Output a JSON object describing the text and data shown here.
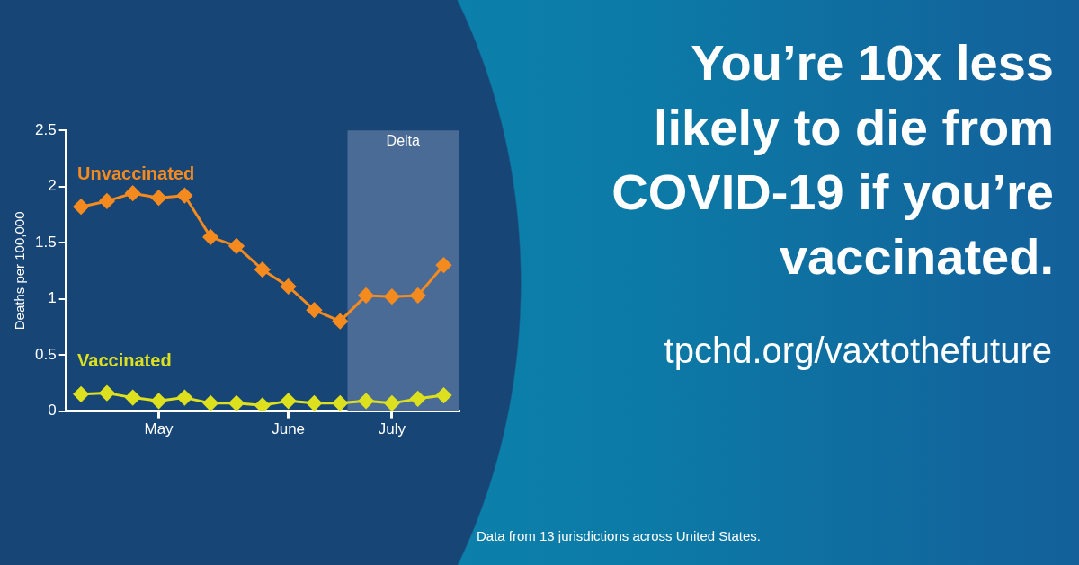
{
  "chart_data": {
    "type": "line",
    "title": "You’re 10x less likely to die from COVID-19 if you’re vaccinated.",
    "ylabel": "Deaths per 100,000",
    "x": [
      "--04-10",
      "--04-17",
      "--04-24",
      "--05-01",
      "--05-08",
      "--05-15",
      "--05-22",
      "--05-29",
      "--06-05",
      "--06-12",
      "--06-19",
      "--06-26",
      "--07-03",
      "--07-10",
      "--07-17"
    ],
    "series": [
      {
        "name": "Unvaccinated",
        "color": "#f58a1f",
        "values": [
          1.82,
          1.87,
          1.94,
          1.9,
          1.92,
          1.55,
          1.47,
          1.26,
          1.11,
          0.9,
          0.8,
          1.03,
          1.02,
          1.03,
          1.3
        ]
      },
      {
        "name": "Vaccinated",
        "color": "#dde01e",
        "values": [
          0.15,
          0.16,
          0.12,
          0.09,
          0.12,
          0.07,
          0.07,
          0.05,
          0.09,
          0.07,
          0.07,
          0.09,
          0.07,
          0.11,
          0.14
        ]
      }
    ],
    "xlim": [
      "--04-06",
      "--07-21"
    ],
    "xticks": [
      {
        "value": "--05-01",
        "label": "May"
      },
      {
        "value": "--06-05",
        "label": "June"
      },
      {
        "value": "--07-03",
        "label": "July"
      }
    ],
    "ylim": [
      0,
      2.5
    ],
    "yticks": [
      0,
      0.5,
      1,
      1.5,
      2,
      2.5
    ],
    "bands": [
      {
        "axis": "x",
        "from": "--06-21",
        "to": "--07-21",
        "label": "Delta",
        "color": "#4a6b96"
      }
    ],
    "annotations": [
      "tpchd.org/vaxtothefuture",
      "Data from 13 jurisdictions across United States."
    ],
    "grid": false,
    "legend": false,
    "marker": "diamond",
    "line_style": "solid"
  }
}
